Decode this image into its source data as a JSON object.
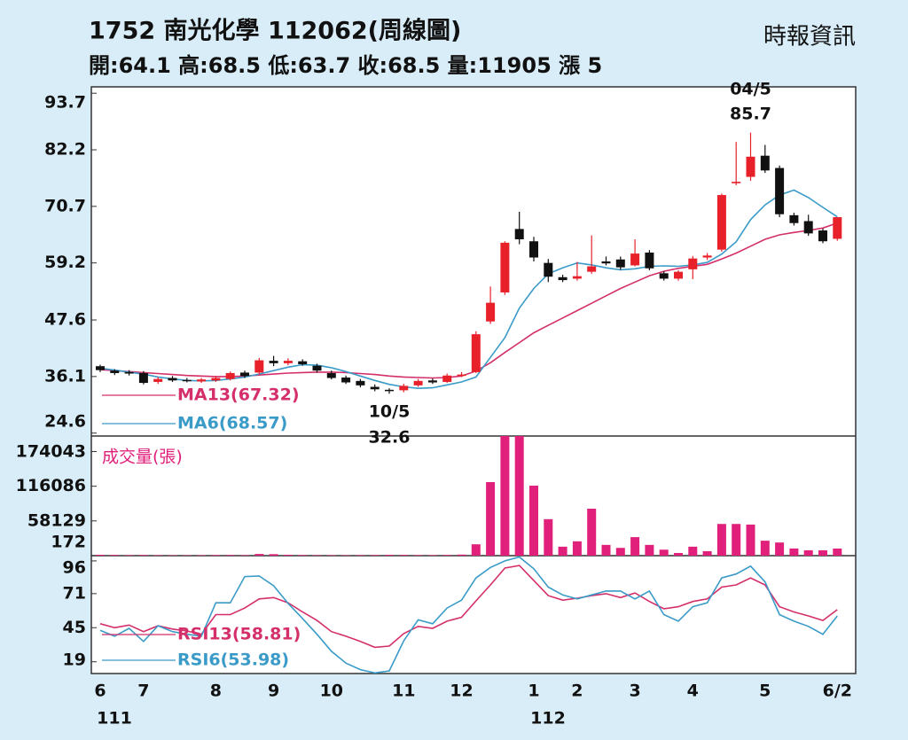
{
  "chart_data": {
    "type": "candlestick",
    "title": "1752  南光化學 112062(周線圖)",
    "subtitle": "開:64.1 高:68.5 低:63.7 收:68.5 量:11905 漲 5",
    "source": "時報資訊",
    "categories": [
      "6",
      null,
      null,
      "7",
      null,
      null,
      null,
      null,
      "8",
      null,
      null,
      null,
      "9",
      null,
      null,
      null,
      "10",
      null,
      null,
      null,
      null,
      "11",
      null,
      null,
      null,
      "12",
      null,
      null,
      null,
      null,
      "1",
      null,
      null,
      "2",
      null,
      null,
      null,
      "3",
      null,
      null,
      null,
      "4",
      null,
      null,
      null,
      null,
      "5",
      null,
      null,
      null,
      null,
      "6/2"
    ],
    "year_labels": [
      "111",
      "112"
    ],
    "open": [
      38.2,
      37.3,
      37.0,
      36.8,
      35.0,
      35.8,
      35.4,
      35.1,
      35.3,
      35.6,
      36.9,
      36.9,
      39.3,
      38.8,
      39.2,
      38.3,
      36.8,
      35.9,
      35.2,
      34.0,
      33.4,
      33.3,
      34.3,
      35.3,
      35.0,
      36.3,
      37.0,
      47.3,
      53.2,
      66.1,
      63.6,
      59.2,
      56.3,
      56.0,
      57.4,
      59.5,
      59.9,
      58.7,
      61.3,
      57.1,
      56.0,
      57.9,
      60.3,
      61.9,
      75.4,
      76.7,
      81.0,
      78.5,
      68.9,
      67.7,
      65.8,
      64.1
    ],
    "high": [
      38.5,
      37.6,
      37.4,
      37.2,
      36.0,
      36.2,
      35.8,
      35.8,
      36.2,
      37.1,
      37.3,
      39.9,
      40.3,
      39.8,
      39.6,
      38.7,
      37.3,
      36.3,
      35.6,
      34.5,
      33.7,
      34.6,
      35.6,
      35.7,
      36.7,
      37.0,
      45.3,
      54.4,
      63.6,
      69.6,
      64.5,
      60.0,
      56.8,
      59.4,
      64.8,
      60.5,
      60.5,
      64.0,
      61.8,
      57.5,
      57.7,
      60.6,
      61.2,
      73.3,
      83.8,
      85.7,
      83.2,
      79.0,
      69.4,
      69.0,
      66.2,
      68.5
    ],
    "low": [
      37.0,
      36.4,
      36.3,
      34.5,
      34.6,
      35.0,
      34.9,
      34.8,
      35.0,
      35.3,
      35.8,
      36.5,
      38.2,
      38.4,
      38.3,
      36.9,
      35.5,
      34.6,
      33.9,
      33.1,
      32.6,
      32.9,
      34.0,
      34.6,
      34.8,
      36.0,
      36.8,
      46.8,
      52.7,
      63.0,
      59.5,
      55.3,
      55.3,
      55.6,
      57.0,
      58.7,
      57.8,
      58.5,
      57.7,
      55.6,
      55.6,
      55.9,
      59.8,
      61.5,
      75.0,
      75.9,
      77.5,
      68.5,
      66.8,
      64.7,
      63.2,
      63.7
    ],
    "close": [
      37.4,
      36.8,
      36.7,
      34.8,
      35.6,
      35.3,
      35.2,
      35.5,
      35.8,
      36.8,
      36.2,
      39.4,
      38.8,
      39.3,
      38.6,
      37.3,
      35.8,
      34.9,
      34.3,
      33.5,
      33.2,
      34.2,
      35.2,
      34.9,
      36.3,
      36.5,
      44.7,
      51.1,
      63.3,
      64.0,
      60.3,
      56.4,
      55.7,
      56.5,
      58.5,
      59.1,
      58.3,
      61.1,
      58.1,
      56.0,
      57.4,
      60.1,
      60.7,
      73.0,
      75.7,
      80.8,
      78.0,
      69.1,
      67.3,
      65.2,
      63.6,
      68.5
    ],
    "up_color": "#e8202a",
    "down_color": "#111111",
    "ylim": [
      24,
      95
    ],
    "yticks": [
      24.6,
      36.1,
      47.6,
      59.2,
      70.7,
      82.2,
      93.7
    ],
    "series": [
      {
        "name": "MA13(67.32)",
        "color": "#d42f6b",
        "values": [
          37.5,
          37.3,
          37.1,
          36.9,
          36.7,
          36.5,
          36.3,
          36.2,
          36.1,
          36.1,
          36.2,
          36.4,
          36.6,
          36.8,
          36.9,
          37.0,
          37.0,
          36.9,
          36.7,
          36.5,
          36.2,
          36.0,
          35.9,
          35.8,
          35.9,
          36.2,
          37.2,
          38.9,
          41.0,
          43.0,
          45.0,
          46.5,
          48.0,
          49.5,
          51.0,
          52.5,
          54.0,
          55.3,
          56.6,
          57.5,
          58.1,
          58.5,
          58.9,
          60.0,
          61.2,
          62.6,
          64.0,
          64.9,
          65.4,
          65.8,
          66.3,
          67.32
        ]
      },
      {
        "name": "MA6(68.57)",
        "color": "#3a9bc8",
        "values": [
          37.8,
          37.4,
          37.0,
          36.6,
          36.0,
          35.6,
          35.3,
          35.2,
          35.3,
          35.6,
          36.0,
          36.6,
          37.3,
          38.0,
          38.5,
          38.4,
          37.9,
          37.1,
          36.2,
          35.3,
          34.5,
          34.0,
          33.7,
          33.8,
          34.4,
          35.0,
          36.0,
          40.0,
          44.0,
          50.0,
          54.0,
          57.0,
          58.2,
          59.2,
          58.8,
          58.2,
          57.8,
          58.0,
          58.5,
          58.6,
          58.5,
          58.8,
          59.3,
          61.0,
          63.5,
          68.0,
          71.0,
          73.0,
          74.0,
          72.5,
          70.5,
          68.57
        ]
      }
    ],
    "annotations": [
      {
        "date": "04/5",
        "value": 85.7
      },
      {
        "date": "10/5",
        "value": 32.6
      }
    ],
    "volume": {
      "label": "成交量(張)",
      "color": "#e0207a",
      "ylim": [
        0,
        200000
      ],
      "yticks": [
        172,
        58129,
        116086,
        174043
      ],
      "values": [
        1500,
        1200,
        900,
        1100,
        800,
        700,
        600,
        800,
        1000,
        1200,
        900,
        2800,
        2500,
        1500,
        1100,
        900,
        800,
        700,
        900,
        1000,
        1300,
        1200,
        900,
        800,
        1100,
        1800,
        19000,
        123000,
        200000,
        200000,
        117000,
        61000,
        15000,
        24000,
        78500,
        18000,
        13000,
        31000,
        18000,
        10000,
        4500,
        15000,
        7500,
        53000,
        53000,
        52000,
        25000,
        22000,
        12000,
        9000,
        9000,
        11905
      ]
    },
    "rsi": {
      "ylim": [
        10,
        100
      ],
      "yticks": [
        19,
        45,
        71,
        96
      ],
      "series": [
        {
          "name": "RSI13(58.81)",
          "color": "#d42f6b",
          "values": [
            48,
            45,
            47,
            42,
            46.5,
            44,
            42.5,
            40,
            55,
            55,
            60,
            67,
            68,
            64,
            57,
            50.5,
            42,
            38.5,
            34.5,
            30,
            31,
            40.5,
            46,
            44.5,
            50,
            53,
            65.5,
            77.7,
            90.5,
            92.5,
            81,
            69.5,
            66,
            67.5,
            69.5,
            71,
            68,
            71.5,
            65,
            59.5,
            61,
            65,
            67,
            76,
            77.7,
            83,
            77.7,
            61,
            57,
            54,
            50.5,
            58.81
          ]
        },
        {
          "name": "RSI6(53.98)",
          "color": "#3a9bc8",
          "values": [
            43,
            38.5,
            44.5,
            34.5,
            46.5,
            42,
            40,
            38.5,
            64,
            64,
            84,
            84.5,
            77,
            63.5,
            52,
            40,
            27,
            18,
            13,
            10.5,
            12,
            35,
            51,
            48,
            60,
            66,
            83,
            91,
            96,
            99,
            90,
            76,
            70,
            67,
            70,
            73,
            73,
            67,
            73,
            55,
            50,
            61,
            64,
            83,
            86,
            92,
            80,
            55,
            50,
            46,
            40,
            53.98
          ]
        }
      ]
    }
  }
}
